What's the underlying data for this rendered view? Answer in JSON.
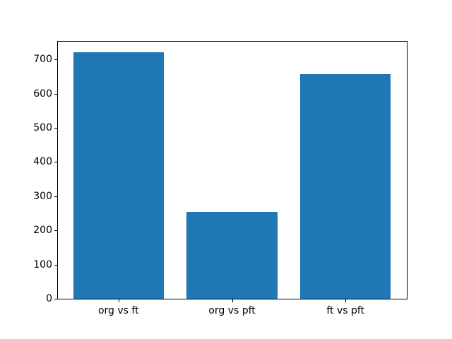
{
  "figure": {
    "background_color": "#ffffff",
    "frame_color": "#000000",
    "text_color": "#000000"
  },
  "chart_data": {
    "type": "bar",
    "title": "",
    "xlabel": "",
    "ylabel": "",
    "categories": [
      "org vs ft",
      "org vs pft",
      "ft vs pft"
    ],
    "values": [
      720,
      255,
      657
    ],
    "bar_color": "#1f77b4",
    "bar_width": 0.8,
    "yticks": [
      0,
      100,
      200,
      300,
      400,
      500,
      600,
      700
    ],
    "ylim": [
      0,
      754
    ],
    "xlim": [
      -0.54,
      2.54
    ],
    "grid": false,
    "legend": false
  }
}
